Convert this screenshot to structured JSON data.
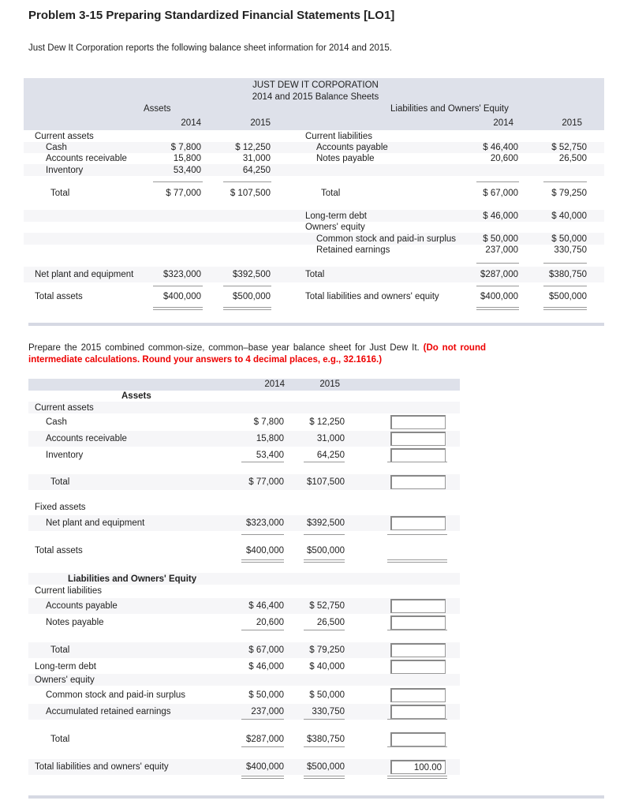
{
  "title": "Problem 3-15 Preparing Standardized Financial Statements [LO1]",
  "intro": "Just Dew It Corporation reports the following balance sheet information for 2014 and 2015.",
  "balance_sheet": {
    "company": "JUST DEW IT CORPORATION",
    "subtitle": "2014 and 2015 Balance Sheets",
    "assets_header": "Assets",
    "liab_header": "Liabilities and Owners' Equity",
    "year1": "2014",
    "year2": "2015",
    "rows": [
      {
        "l": "Current assets",
        "r": "Current liabilities"
      },
      {
        "l": "Cash",
        "l14": "$  7,800",
        "l15": "$ 12,250",
        "r": "Accounts payable",
        "r14": "$ 46,400",
        "r15": "$ 52,750",
        "li": 1,
        "ri": 1
      },
      {
        "l": "Accounts receivable",
        "l14": "15,800",
        "l15": "31,000",
        "r": "Notes payable",
        "r14": "20,600",
        "r15": "26,500",
        "li": 1,
        "ri": 1
      },
      {
        "l": "Inventory",
        "l14": "53,400",
        "l15": "64,250",
        "li": 1
      },
      {
        "l": "Total",
        "l14": "$  77,000",
        "l15": "$ 107,500",
        "r": "Total",
        "r14": "$  67,000",
        "r15": "$  79,250",
        "li": 2,
        "ri": 2
      },
      {
        "r": "Long-term debt",
        "r14": "$  46,000",
        "r15": "$  40,000"
      },
      {
        "r": "Owners' equity"
      },
      {
        "r": "Common stock and paid-in surplus",
        "r14": "$  50,000",
        "r15": "$  50,000",
        "ri": 1
      },
      {
        "r": "Retained earnings",
        "r14": "237,000",
        "r15": "330,750",
        "ri": 1
      },
      {
        "l": "Net plant and equipment",
        "l14": "$323,000",
        "l15": "$392,500",
        "r": "Total",
        "r14": "$287,000",
        "r15": "$380,750"
      },
      {
        "l": "Total assets",
        "l14": "$400,000",
        "l15": "$500,000",
        "r": "Total liabilities and owners' equity",
        "r14": "$400,000",
        "r15": "$500,000"
      }
    ]
  },
  "instructions": "Prepare the 2015 combined common-size, common–base year balance sheet for Just Dew It.",
  "instructions_red": "(Do not round intermediate calculations. Round your answers to 4 decimal places, e.g., 32.1616.)",
  "answer_table": {
    "year1": "2014",
    "year2": "2015",
    "rows": [
      {
        "label": "Assets",
        "bold": true,
        "center": true
      },
      {
        "label": "Current assets"
      },
      {
        "label": "Cash",
        "v14": "$  7,800",
        "v15": "$ 12,250",
        "input": "",
        "indent": 1
      },
      {
        "label": "Accounts receivable",
        "v14": "15,800",
        "v15": "31,000",
        "input": "",
        "indent": 1
      },
      {
        "label": "Inventory",
        "v14": "53,400",
        "v15": "64,250",
        "input": "",
        "indent": 1
      },
      {
        "label": "Total",
        "v14": "$ 77,000",
        "v15": "$107,500",
        "input": "",
        "indent": 2
      },
      {
        "label": "Fixed assets"
      },
      {
        "label": "Net plant and equipment",
        "v14": "$323,000",
        "v15": "$392,500",
        "input": "",
        "indent": 1
      },
      {
        "label": "Total assets",
        "v14": "$400,000",
        "v15": "$500,000"
      },
      {
        "label": "Liabilities and Owners' Equity",
        "bold": true,
        "center": true
      },
      {
        "label": "Current liabilities"
      },
      {
        "label": "Accounts payable",
        "v14": "$ 46,400",
        "v15": "$ 52,750",
        "input": "",
        "indent": 1
      },
      {
        "label": "Notes payable",
        "v14": "20,600",
        "v15": "26,500",
        "input": "",
        "indent": 1
      },
      {
        "label": "Total",
        "v14": "$ 67,000",
        "v15": "$ 79,250",
        "input": "",
        "indent": 2
      },
      {
        "label": "Long-term debt",
        "v14": "$ 46,000",
        "v15": "$ 40,000",
        "input": ""
      },
      {
        "label": "Owners' equity"
      },
      {
        "label": "Common stock and paid-in surplus",
        "v14": "$ 50,000",
        "v15": "$ 50,000",
        "input": "",
        "indent": 1
      },
      {
        "label": "Accumulated retained earnings",
        "v14": "237,000",
        "v15": "330,750",
        "input": "",
        "indent": 1
      },
      {
        "label": "Total",
        "v14": "$287,000",
        "v15": "$380,750",
        "input": "",
        "indent": 2
      },
      {
        "label": "Total liabilities and owners' equity",
        "v14": "$400,000",
        "v15": "$500,000",
        "input": "100.00"
      }
    ]
  }
}
